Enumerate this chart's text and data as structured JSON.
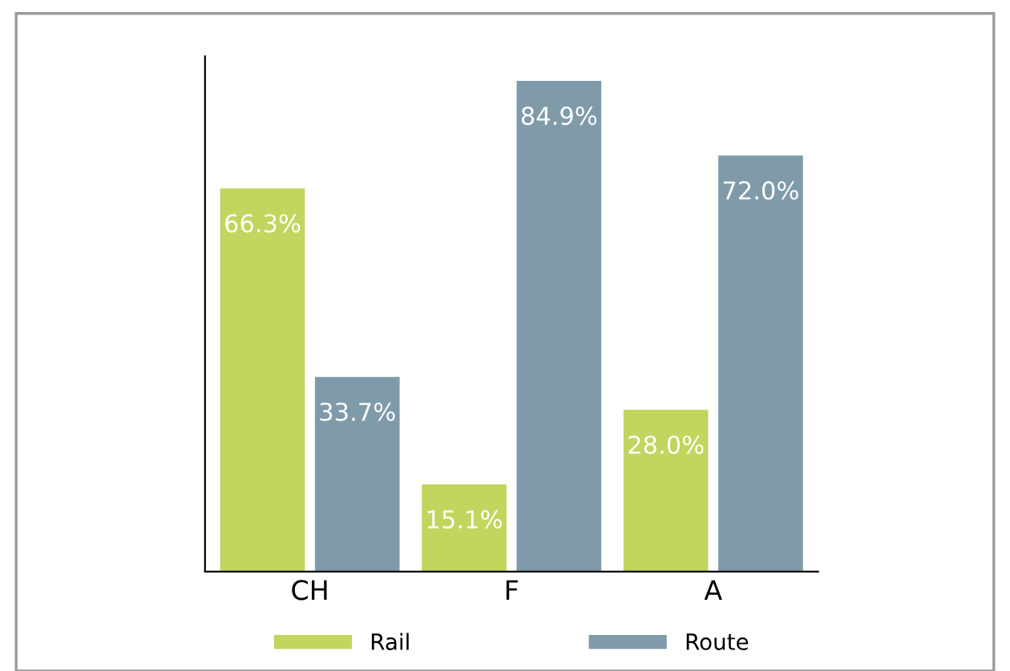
{
  "chart_data": {
    "type": "bar",
    "categories": [
      "CH",
      "F",
      "A"
    ],
    "series": [
      {
        "name": "Rail",
        "color": "#c2d55f",
        "values": [
          66.3,
          15.1,
          28.0
        ],
        "value_labels": [
          "66.3%",
          "15.1%",
          "28.0%"
        ]
      },
      {
        "name": "Route",
        "color": "#7f9baa",
        "values": [
          33.7,
          84.9,
          72.0
        ],
        "value_labels": [
          "33.7%",
          "84.9%",
          "72.0%"
        ]
      }
    ],
    "legend": "bottom",
    "grid": false,
    "tick_labels": "x"
  }
}
